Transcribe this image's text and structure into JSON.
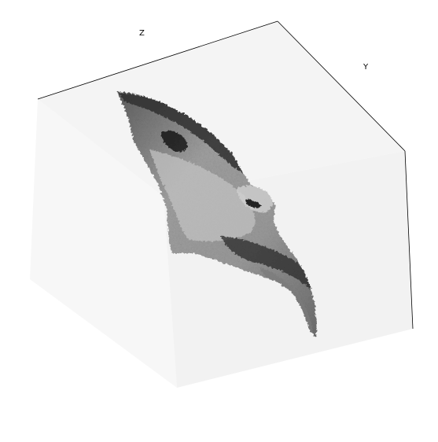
{
  "chart_data": {
    "type": "surface3d",
    "title": "",
    "axes": {
      "z_label": "Z",
      "y_label": "Y",
      "x_label": ""
    },
    "colormap": "gray",
    "pane_colors": {
      "left": "#f7f7f7",
      "right": "#f2f2f2",
      "top": "#f4f4f4"
    },
    "edge_color": "#000000"
  }
}
